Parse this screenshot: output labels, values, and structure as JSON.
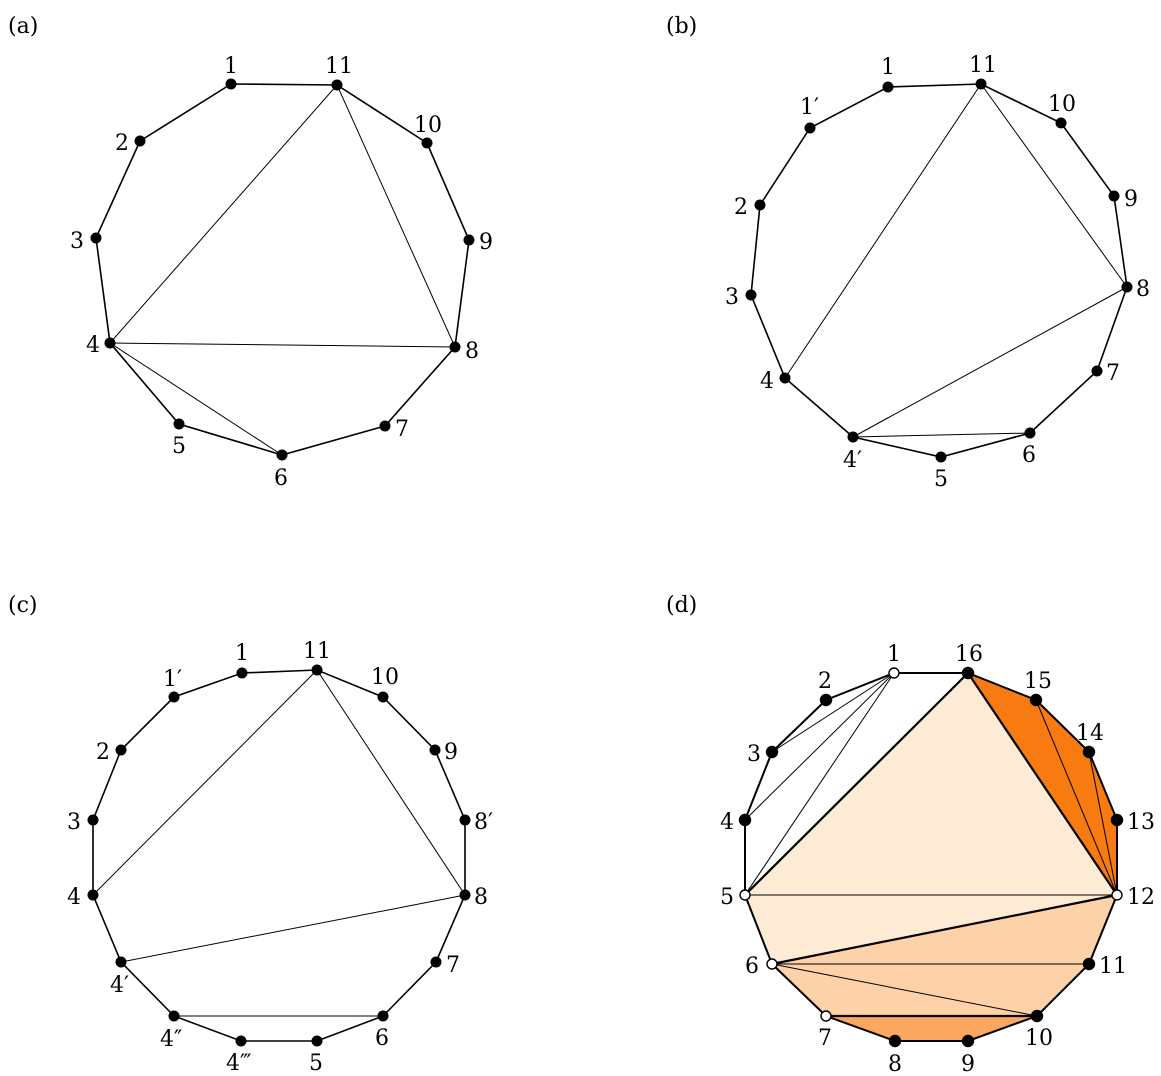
{
  "colors": {
    "edge": "#000000",
    "vertex_fill": "#000000",
    "open_vertex_fill": "#ffffff",
    "shade_light": "#fdebd6",
    "shade_medium": "#fdd2a8",
    "shade_dark": "#fba760",
    "shade_darkest": "#f77b10"
  },
  "panels": [
    {
      "id": "a",
      "label": "(a)",
      "vertex_labels": [
        "1",
        "11",
        "10",
        "9",
        "8",
        "7",
        "6",
        "5",
        "4",
        "3",
        "2"
      ]
    },
    {
      "id": "b",
      "label": "(b)",
      "vertex_labels": [
        "1",
        "11",
        "10",
        "9",
        "8",
        "7",
        "6",
        "5",
        "4′",
        "4",
        "3",
        "2",
        "1′"
      ]
    },
    {
      "id": "c",
      "label": "(c)",
      "vertex_labels": [
        "1",
        "11",
        "10",
        "9",
        "8′",
        "8",
        "7",
        "6",
        "5",
        "4‴",
        "4″",
        "4′",
        "4",
        "3",
        "2",
        "1′"
      ]
    },
    {
      "id": "d",
      "label": "(d)",
      "vertex_labels": [
        "1",
        "16",
        "15",
        "14",
        "13",
        "12",
        "11",
        "10",
        "9",
        "8",
        "7",
        "6",
        "5",
        "4",
        "3",
        "2"
      ]
    }
  ]
}
